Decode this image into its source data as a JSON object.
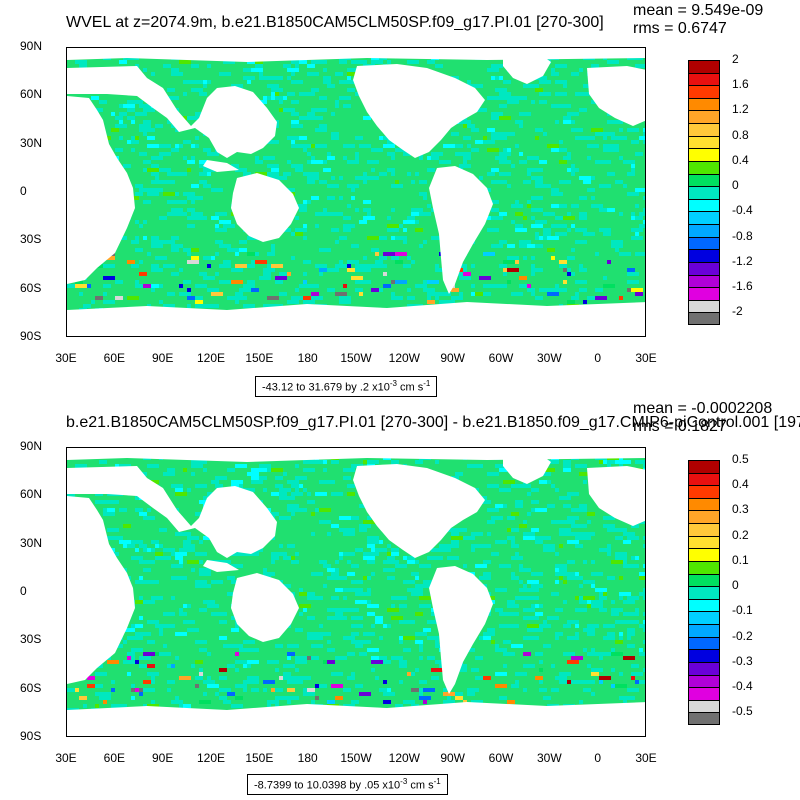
{
  "panels": [
    {
      "title": "WVEL at z=2074.9m, b.e21.B1850CAM5CLM50SP.f09_g17.PI.01 [270-300]",
      "mean": "mean = 9.549e-09",
      "rms": "rms = 0.6747",
      "range_text": "-43.12 to 31.679 by .2 x10",
      "range_exp": "-3",
      "range_unit": " cm s",
      "range_unit_exp": "-1",
      "colorbar_labels": [
        "2",
        "1.6",
        "1.2",
        "0.8",
        "0.4",
        "0",
        "-0.4",
        "-0.8",
        "-1.2",
        "-1.6",
        "-2"
      ]
    },
    {
      "title": "b.e21.B1850CAM5CLM50SP.f09_g17.PI.01 [270-300] - b.e21.B1850.f09_g17.CMIP6-piControl.001 [197",
      "mean": "mean = -0.0002208",
      "rms": "rms = 0.1827",
      "range_text": "-8.7399 to 10.0398 by .05 x10",
      "range_exp": "-3",
      "range_unit": " cm s",
      "range_unit_exp": "-1",
      "colorbar_labels": [
        "0.5",
        "0.4",
        "0.3",
        "0.2",
        "0.1",
        "0",
        "-0.1",
        "-0.2",
        "-0.3",
        "-0.4",
        "-0.5"
      ]
    }
  ],
  "lat_labels": [
    "90N",
    "60N",
    "30N",
    "0",
    "30S",
    "60S",
    "90S"
  ],
  "lon_labels": [
    "30E",
    "60E",
    "90E",
    "120E",
    "150E",
    "180",
    "150W",
    "120W",
    "90W",
    "60W",
    "30W",
    "0",
    "30E"
  ],
  "colors": {
    "palette_top_to_bottom": [
      "#b00000",
      "#e81010",
      "#ff3a00",
      "#ff8a00",
      "#ffa528",
      "#ffc83a",
      "#ffe030",
      "#ffff00",
      "#50e600",
      "#00e060",
      "#00e8c0",
      "#00ffff",
      "#00d0ff",
      "#00a8ff",
      "#0068ff",
      "#0000e0",
      "#6a00d8",
      "#b000d8",
      "#e000e0",
      "#d8d8d8",
      "#707070"
    ],
    "ocean_dominant": "#20e070",
    "ocean_secondary": "#00e8c0",
    "land": "#ffffff"
  }
}
